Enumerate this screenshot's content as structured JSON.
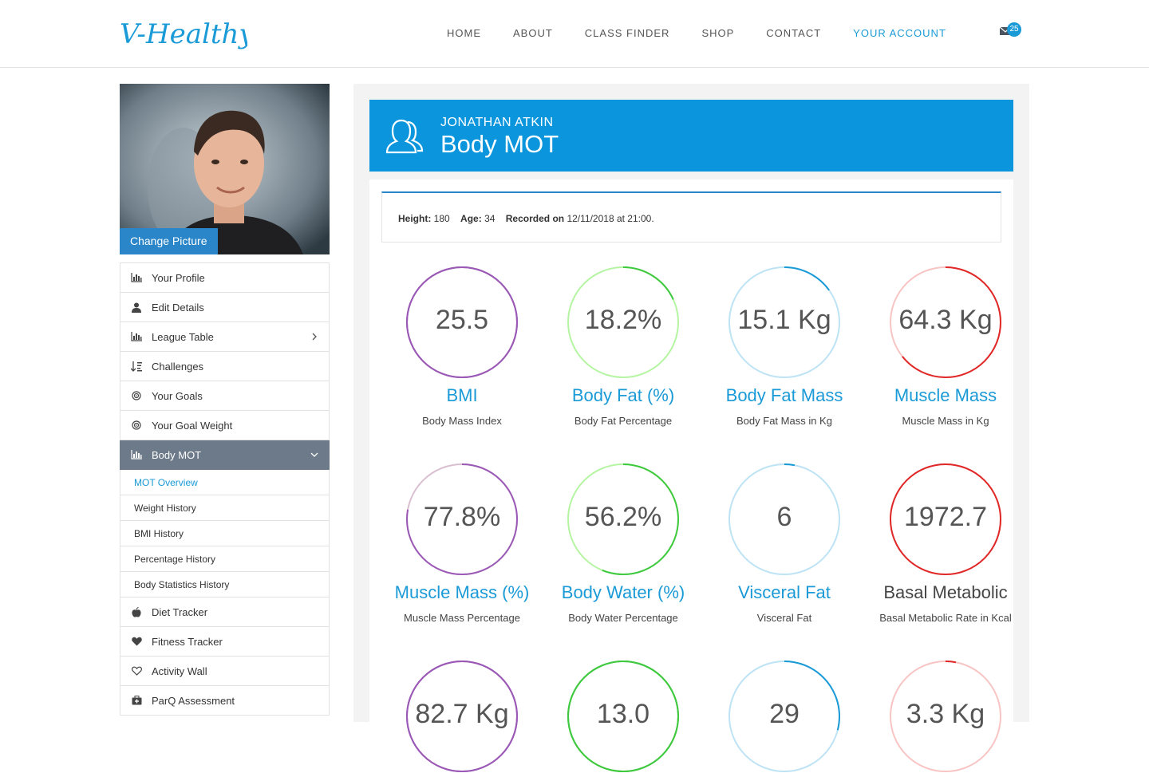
{
  "brand": {
    "logo_text": "V-Healthy",
    "color": "#1a9ad6"
  },
  "nav": {
    "items": [
      {
        "label": "HOME",
        "active": false
      },
      {
        "label": "ABOUT",
        "active": false
      },
      {
        "label": "CLASS FINDER",
        "active": false
      },
      {
        "label": "SHOP",
        "active": false
      },
      {
        "label": "CONTACT",
        "active": false
      },
      {
        "label": "YOUR ACCOUNT",
        "active": true
      }
    ],
    "messages_count": "25"
  },
  "sidebar": {
    "change_picture_label": "Change Picture",
    "items": [
      {
        "label": "Your Profile",
        "icon": "bar-chart-icon"
      },
      {
        "label": "Edit Details",
        "icon": "user-icon"
      },
      {
        "label": "League Table",
        "icon": "bar-chart-icon",
        "chevron": "right"
      },
      {
        "label": "Challenges",
        "icon": "sort-icon"
      },
      {
        "label": "Your Goals",
        "icon": "target-icon"
      },
      {
        "label": "Your Goal Weight",
        "icon": "target-icon"
      },
      {
        "label": "Body MOT",
        "icon": "bar-chart-icon",
        "chevron": "down",
        "active": true
      }
    ],
    "subitems": [
      {
        "label": "MOT Overview",
        "current": true
      },
      {
        "label": "Weight History"
      },
      {
        "label": "BMI History"
      },
      {
        "label": "Percentage History"
      },
      {
        "label": "Body Statistics History"
      }
    ],
    "items_after": [
      {
        "label": "Diet Tracker",
        "icon": "apple-icon"
      },
      {
        "label": "Fitness Tracker",
        "icon": "heart-icon"
      },
      {
        "label": "Activity Wall",
        "icon": "heart-outline-icon"
      },
      {
        "label": "ParQ Assessment",
        "icon": "medical-kit-icon"
      }
    ]
  },
  "banner": {
    "name": "JONATHAN ATKIN",
    "title": "Body MOT"
  },
  "info": {
    "height_label": "Height:",
    "height_value": "180",
    "age_label": "Age:",
    "age_value": "34",
    "recorded_label": "Recorded on",
    "recorded_value": "12/11/2018 at 21:00."
  },
  "stats": [
    {
      "value": "25.5",
      "label": "BMI",
      "desc": "Body Mass Index",
      "color": "#9b59b6",
      "track": "#9b59b6",
      "fraction": 1.0
    },
    {
      "value": "18.2%",
      "label": "Body Fat (%)",
      "desc": "Body Fat Percentage",
      "color": "#3ec93e",
      "track": "#b5f5a2",
      "fraction": 0.182
    },
    {
      "value": "15.1 Kg",
      "label": "Body Fat Mass",
      "desc": "Body Fat Mass in Kg",
      "color": "#1a9ad6",
      "track": "#bde3f5",
      "fraction": 0.151
    },
    {
      "value": "64.3 Kg",
      "label": "Muscle Mass",
      "desc": "Muscle Mass in Kg",
      "color": "#e02828",
      "track": "#f8c4c4",
      "fraction": 0.643
    },
    {
      "value": "77.8%",
      "label": "Muscle Mass (%)",
      "desc": "Muscle Mass Percentage",
      "color": "#9b59b6",
      "track": "#d9bfd0",
      "fraction": 0.778
    },
    {
      "value": "56.2%",
      "label": "Body Water (%)",
      "desc": "Body Water Percentage",
      "color": "#3ec93e",
      "track": "#b5f5a2",
      "fraction": 0.562
    },
    {
      "value": "6",
      "label": "Visceral Fat",
      "desc": "Visceral Fat",
      "color": "#1a9ad6",
      "track": "#bde3f5",
      "fraction": 0.03
    },
    {
      "value": "1972.7",
      "label": "Basal Metabolic",
      "desc": "Basal Metabolic Rate in Kcal",
      "color": "#e02828",
      "track": "#f8c4c4",
      "fraction": 1.0,
      "dark_label": true
    },
    {
      "value": "82.7 Kg",
      "label": "",
      "desc": "",
      "color": "#9b59b6",
      "track": "#9b59b6",
      "fraction": 1.0
    },
    {
      "value": "13.0",
      "label": "",
      "desc": "",
      "color": "#3ec93e",
      "track": "#3ec93e",
      "fraction": 1.0
    },
    {
      "value": "29",
      "label": "",
      "desc": "",
      "color": "#1a9ad6",
      "track": "#bde3f5",
      "fraction": 0.29
    },
    {
      "value": "3.3 Kg",
      "label": "",
      "desc": "",
      "color": "#e02828",
      "track": "#f8c4c4",
      "fraction": 0.03
    }
  ]
}
